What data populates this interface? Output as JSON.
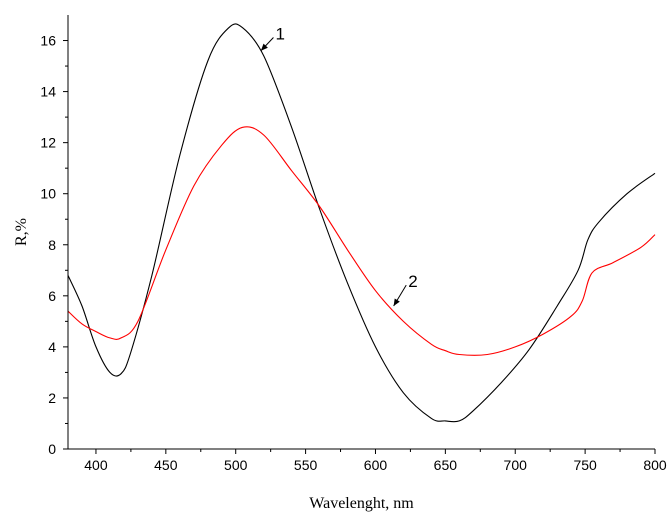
{
  "chart_data": {
    "type": "line",
    "xlabel": "Wavelenght, nm",
    "ylabel": "R,%",
    "xlim": [
      380,
      800
    ],
    "ylim": [
      0,
      17
    ],
    "xticks": [
      400,
      450,
      500,
      550,
      600,
      650,
      700,
      750,
      800
    ],
    "yticks": [
      0,
      2,
      4,
      6,
      8,
      10,
      12,
      14,
      16
    ],
    "grid": false,
    "legend": "none",
    "series": [
      {
        "label": "1",
        "color": "#000000",
        "x": [
          380,
          390,
          400,
          410,
          418,
          425,
          440,
          460,
          480,
          495,
          505,
          520,
          540,
          560,
          580,
          600,
          620,
          640,
          650,
          660,
          670,
          690,
          710,
          730,
          745,
          752,
          760,
          780,
          800
        ],
        "y": [
          6.8,
          5.6,
          4.0,
          3.0,
          2.95,
          3.8,
          6.8,
          11.5,
          15.2,
          16.5,
          16.5,
          15.4,
          12.6,
          9.4,
          6.5,
          4.0,
          2.2,
          1.2,
          1.1,
          1.1,
          1.5,
          2.6,
          3.9,
          5.6,
          7.0,
          8.2,
          8.9,
          10.0,
          10.8
        ]
      },
      {
        "label": "2",
        "color": "#ff0000",
        "x": [
          380,
          390,
          400,
          410,
          418,
          430,
          450,
          470,
          490,
          505,
          520,
          540,
          560,
          580,
          600,
          620,
          640,
          650,
          660,
          680,
          700,
          720,
          740,
          748,
          755,
          770,
          790,
          800
        ],
        "y": [
          5.4,
          4.9,
          4.6,
          4.35,
          4.35,
          5.0,
          7.8,
          10.3,
          11.9,
          12.6,
          12.3,
          10.9,
          9.5,
          7.8,
          6.2,
          5.0,
          4.1,
          3.85,
          3.7,
          3.7,
          4.0,
          4.5,
          5.2,
          5.8,
          6.9,
          7.3,
          7.9,
          8.4
        ]
      }
    ],
    "annotations": [
      {
        "text": "1",
        "x": 527,
        "y": 16.0,
        "arrow_to_x": 518,
        "arrow_to_y": 15.6
      },
      {
        "text": "2",
        "x": 622,
        "y": 6.3,
        "arrow_to_x": 613,
        "arrow_to_y": 5.6
      }
    ]
  }
}
